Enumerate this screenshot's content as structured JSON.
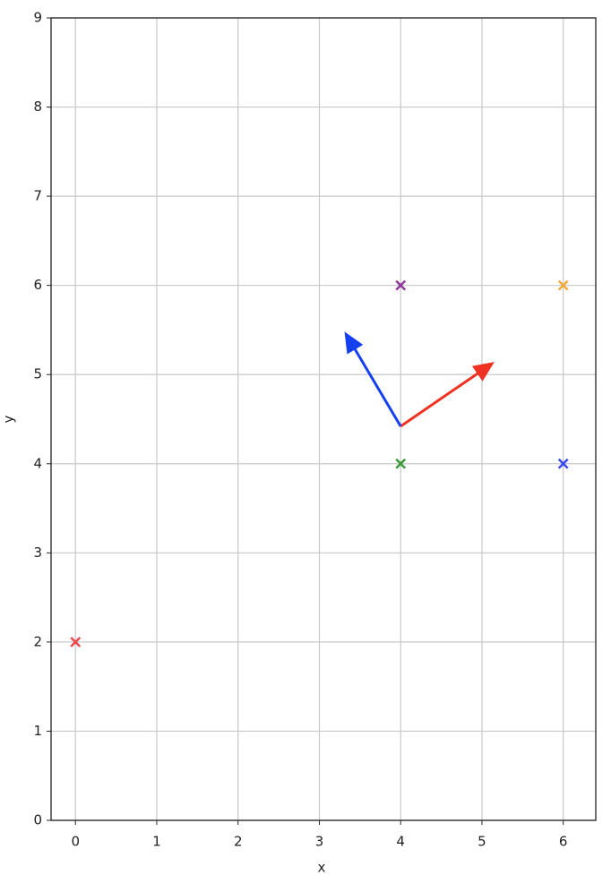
{
  "chart_data": {
    "type": "scatter",
    "xlabel": "x",
    "ylabel": "y",
    "x": [
      0,
      4,
      4,
      6,
      6
    ],
    "values": [
      2,
      4,
      6,
      6,
      4
    ],
    "colors": [
      "#f0474a",
      "#3a9a3a",
      "#8e3a9a",
      "#f5a83a",
      "#3a4af0"
    ],
    "marker": "x",
    "arrows": [
      {
        "x0": 4,
        "y0": 4.42,
        "dx": 1.12,
        "dy": 0.7,
        "color": "#f03222"
      },
      {
        "x0": 4,
        "y0": 4.42,
        "dx": -0.67,
        "dy": 1.03,
        "color": "#1540f0"
      }
    ],
    "xlim": [
      -0.3,
      6.4
    ],
    "ylim": [
      0,
      9
    ],
    "xticks": [
      0,
      1,
      2,
      3,
      4,
      5,
      6
    ],
    "yticks": [
      0,
      1,
      2,
      3,
      4,
      5,
      6,
      7,
      8,
      9
    ],
    "grid": true
  }
}
